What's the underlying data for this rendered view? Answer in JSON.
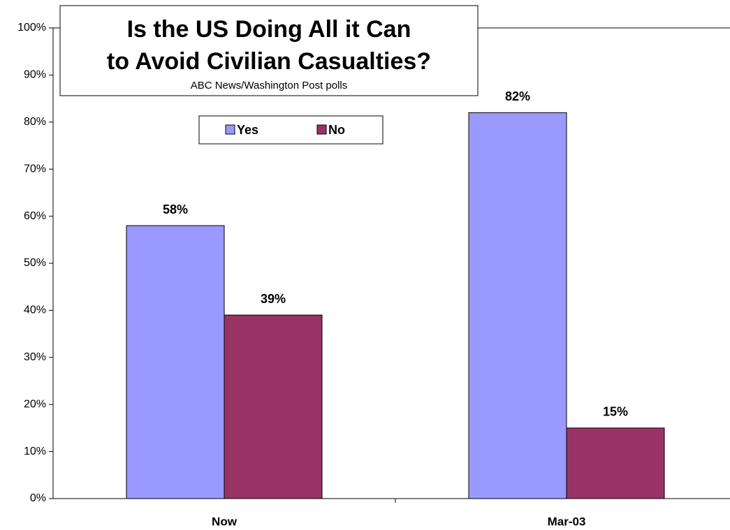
{
  "chart_data": {
    "type": "bar",
    "title": [
      "Is the US Doing All it Can",
      "to Avoid Civilian Casualties?"
    ],
    "subtitle": "ABC News/Washington Post polls",
    "categories": [
      "Now",
      "Mar-03"
    ],
    "series": [
      {
        "name": "Yes",
        "color": "#9999ff",
        "values": [
          58,
          82
        ],
        "value_labels": [
          "58%",
          "82%"
        ]
      },
      {
        "name": "No",
        "color": "#993366",
        "values": [
          39,
          15
        ],
        "value_labels": [
          "39%",
          "15%"
        ]
      }
    ],
    "ylim": [
      0,
      100
    ],
    "yticks": [
      {
        "value": 0,
        "label": "0%"
      },
      {
        "value": 10,
        "label": "10%"
      },
      {
        "value": 20,
        "label": "20%"
      },
      {
        "value": 30,
        "label": "30%"
      },
      {
        "value": 40,
        "label": "40%"
      },
      {
        "value": 50,
        "label": "50%"
      },
      {
        "value": 60,
        "label": "60%"
      },
      {
        "value": 70,
        "label": "70%"
      },
      {
        "value": 80,
        "label": "80%"
      },
      {
        "value": 90,
        "label": "90%"
      },
      {
        "value": 100,
        "label": "100%"
      }
    ],
    "grid": false,
    "legend": "top"
  }
}
